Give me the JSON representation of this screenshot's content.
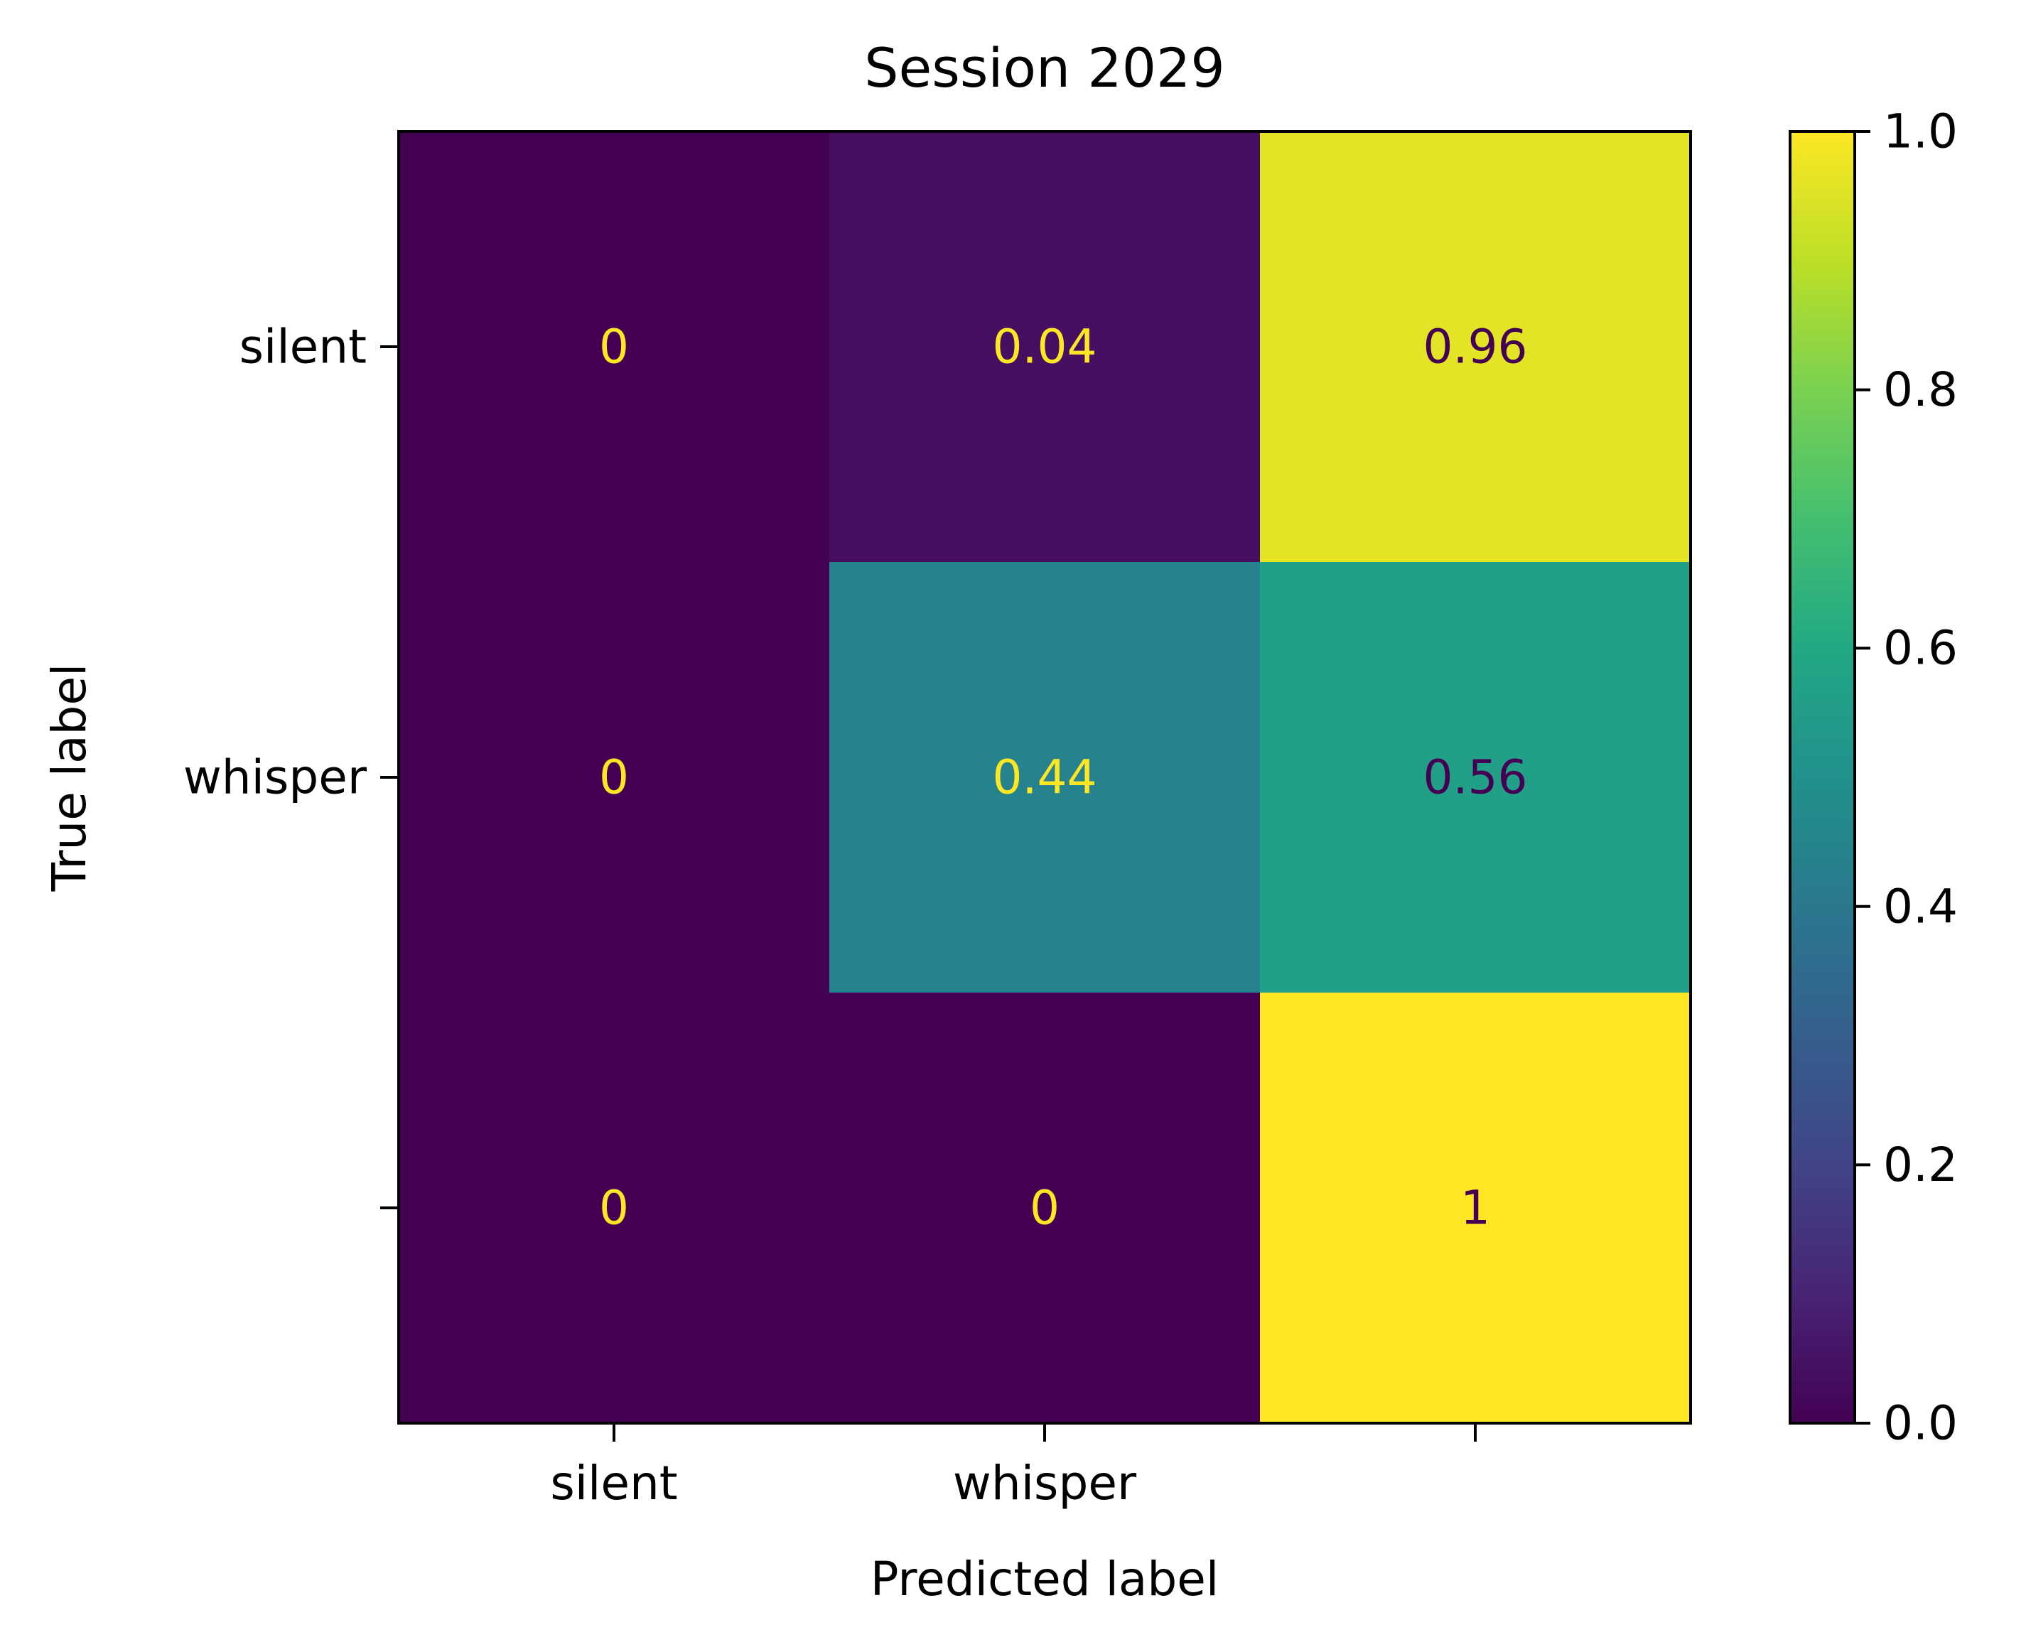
{
  "chart_data": {
    "type": "heatmap",
    "title": "Session 2029",
    "xlabel": "Predicted label",
    "ylabel": "True label",
    "x_categories": [
      "silent",
      "whisper",
      ""
    ],
    "y_categories": [
      "silent",
      "whisper",
      ""
    ],
    "values": [
      [
        0,
        0.04,
        0.96
      ],
      [
        0,
        0.44,
        0.56
      ],
      [
        0,
        0,
        1
      ]
    ],
    "cell_labels": [
      [
        "0",
        "0.04",
        "0.96"
      ],
      [
        "0",
        "0.44",
        "0.56"
      ],
      [
        "0",
        "0",
        "1"
      ]
    ],
    "colormap": "viridis",
    "color_range": [
      0,
      1
    ],
    "colorbar_ticks": [
      "0.0",
      "0.2",
      "0.4",
      "0.6",
      "0.8",
      "1.0"
    ],
    "colorbar_position": "right",
    "text_color_dark_cells": "#fde725",
    "text_color_light_cells": "#440154"
  }
}
